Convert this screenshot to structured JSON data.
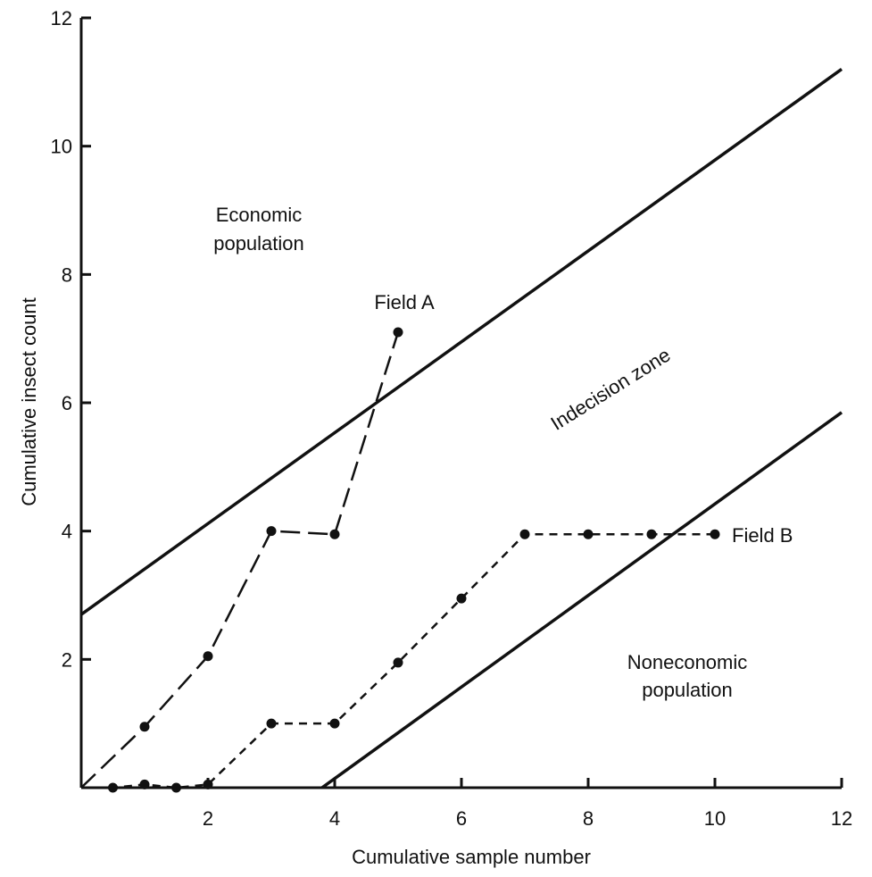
{
  "chart_data": {
    "type": "line",
    "title": "",
    "xlabel": "Cumulative sample number",
    "ylabel": "Cumulative insect  count",
    "xlim": [
      0,
      12
    ],
    "ylim": [
      0,
      12
    ],
    "x_ticks": [
      2,
      4,
      6,
      8,
      10,
      12
    ],
    "y_ticks": [
      2,
      4,
      6,
      8,
      10,
      12
    ],
    "grid": false,
    "lines": [
      {
        "role": "upper decision boundary",
        "x": [
          0,
          12
        ],
        "y": [
          2.7,
          11.2
        ],
        "style": "solid"
      },
      {
        "role": "lower decision boundary",
        "x": [
          3.8,
          12
        ],
        "y": [
          0,
          5.85
        ],
        "style": "solid"
      }
    ],
    "series": [
      {
        "name": "Field A",
        "style": "long-dash",
        "x": [
          0,
          1,
          2,
          3,
          4,
          5
        ],
        "y": [
          0,
          0.95,
          2.05,
          4.0,
          3.95,
          7.1
        ]
      },
      {
        "name": "Field B",
        "style": "short-dash",
        "x": [
          0,
          0.5,
          1,
          1.5,
          2,
          3,
          4,
          5,
          6,
          7,
          8,
          9,
          10
        ],
        "y": [
          0,
          0,
          0.05,
          0,
          0.05,
          1.0,
          1.0,
          1.95,
          2.95,
          3.95,
          3.95,
          3.95,
          3.95
        ]
      }
    ],
    "annotations": {
      "economic": [
        "Economic",
        "population"
      ],
      "field_a": "Field A",
      "indecision": "Indecision zone",
      "field_b": "Field B",
      "noneconomic": [
        "Noneconomic",
        "population"
      ]
    }
  }
}
